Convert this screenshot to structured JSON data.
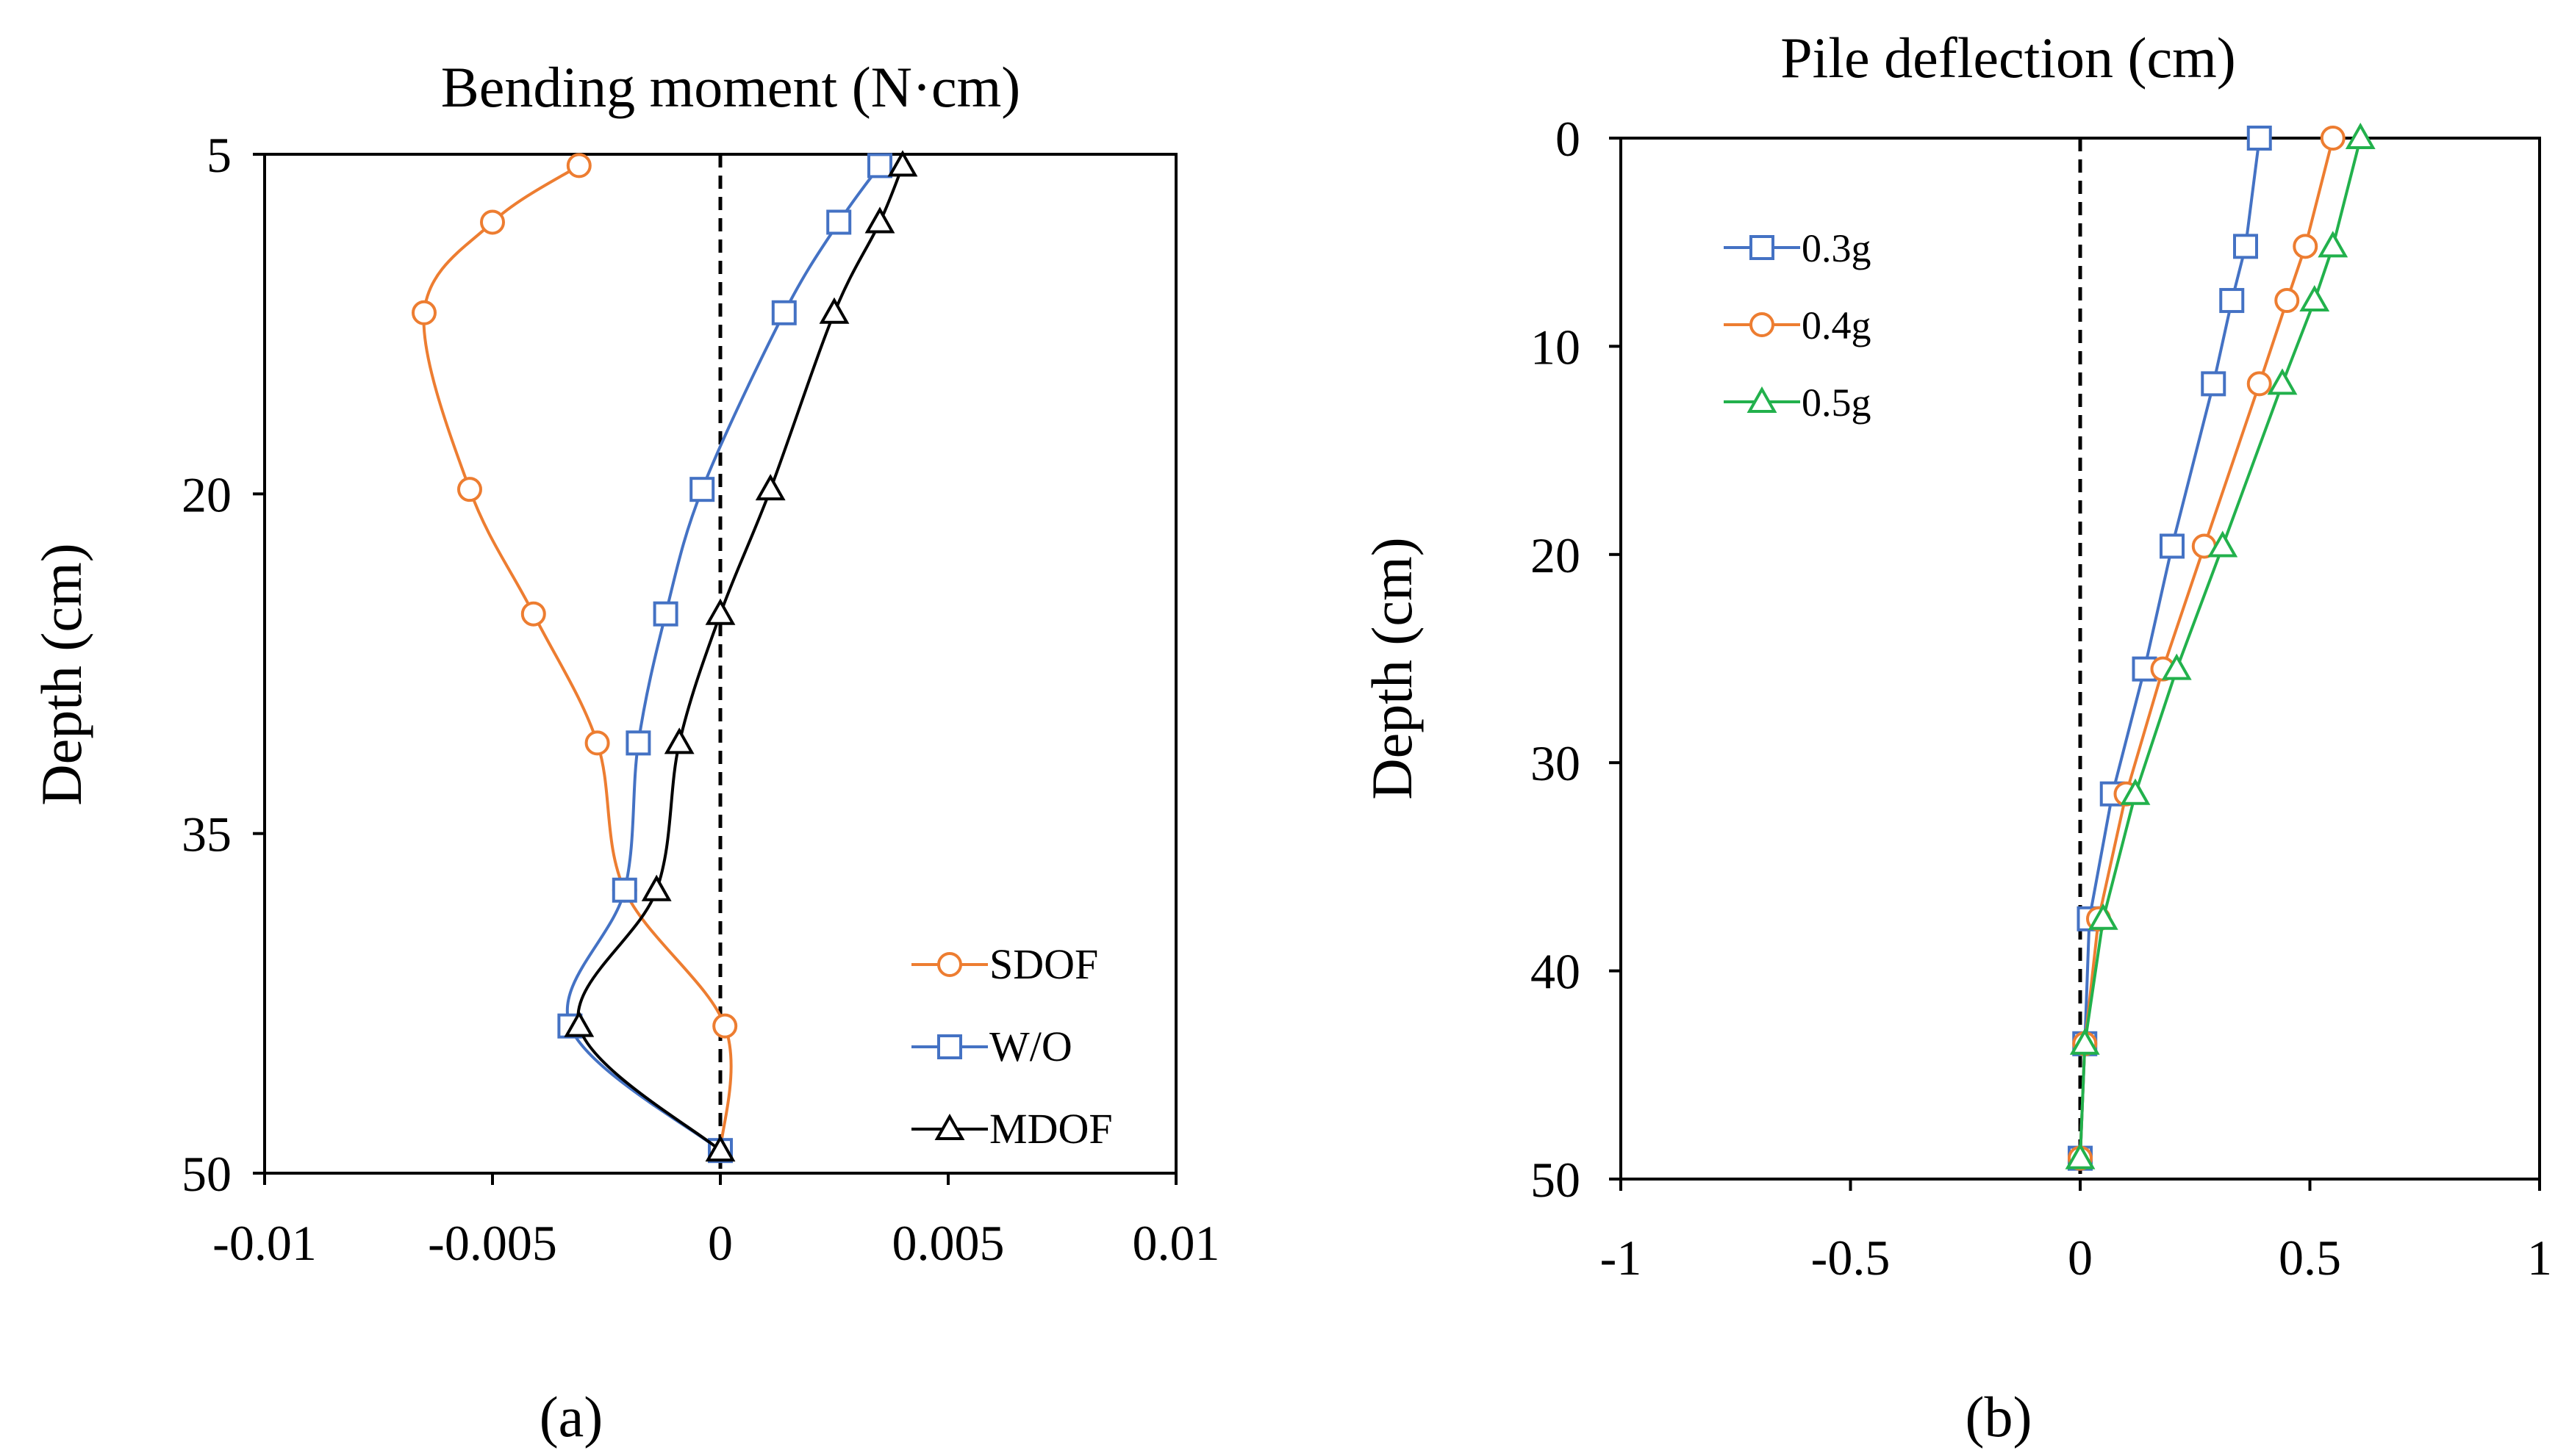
{
  "chart_data": [
    {
      "type": "line",
      "panel_label": "(a)",
      "title": "Bending moment (N·cm)",
      "xlabel": "",
      "ylabel": "Depth (cm)",
      "xlim": [
        -0.01,
        0.01
      ],
      "ylim": [
        5,
        50
      ],
      "y_inverted": true,
      "xticks": [
        -0.01,
        -0.005,
        0,
        0.005,
        0.01
      ],
      "xtick_labels": [
        "-0.01",
        "-0.005",
        "0",
        "0.005",
        "0.01"
      ],
      "yticks": [
        5,
        20,
        35,
        50
      ],
      "ytick_labels": [
        "5",
        "20",
        "35",
        "50"
      ],
      "ref_line_x": 0,
      "grid": false,
      "legend": "bottom-right",
      "series": [
        {
          "name": "SDOF",
          "color": "#ED7D31",
          "marker": "circle",
          "smooth": true,
          "x": [
            -0.0031,
            -0.005,
            -0.0065,
            -0.0055,
            -0.0041,
            -0.0027,
            -0.0021,
            0.0001,
            0.0
          ],
          "y": [
            5.5,
            8,
            12,
            19.8,
            25.3,
            31,
            37.5,
            43.5,
            49
          ]
        },
        {
          "name": "W/O",
          "color": "#4472C4",
          "marker": "square",
          "smooth": true,
          "x": [
            0.0035,
            0.0026,
            0.0014,
            -0.0004,
            -0.0012,
            -0.0018,
            -0.0021,
            -0.0033,
            0.0
          ],
          "y": [
            5.5,
            8,
            12,
            19.8,
            25.3,
            31,
            37.5,
            43.5,
            49
          ]
        },
        {
          "name": "MDOF",
          "color": "#000000",
          "marker": "triangle",
          "smooth": true,
          "x": [
            0.004,
            0.0035,
            0.0025,
            0.0011,
            0.0,
            -0.0009,
            -0.0014,
            -0.0031,
            0.0
          ],
          "y": [
            5.5,
            8,
            12,
            19.8,
            25.3,
            31,
            37.5,
            43.5,
            49
          ]
        }
      ]
    },
    {
      "type": "line",
      "panel_label": "(b)",
      "title": "Pile deflection (cm)",
      "xlabel": "",
      "ylabel": "Depth (cm)",
      "xlim": [
        -1,
        1
      ],
      "ylim": [
        0,
        50
      ],
      "y_inverted": true,
      "xticks": [
        -1,
        -0.5,
        0,
        0.5,
        1
      ],
      "xtick_labels": [
        "-1",
        "-0.5",
        "0",
        "0.5",
        "1"
      ],
      "yticks": [
        0,
        10,
        20,
        30,
        40,
        50
      ],
      "ytick_labels": [
        "0",
        "10",
        "20",
        "30",
        "40",
        "50"
      ],
      "ref_line_x": 0,
      "grid": false,
      "legend": "top-left",
      "series": [
        {
          "name": "0.3g",
          "color": "#4472C4",
          "marker": "square",
          "smooth": false,
          "x": [
            0.39,
            0.36,
            0.33,
            0.29,
            0.2,
            0.14,
            0.07,
            0.02,
            0.01,
            0.0
          ],
          "y": [
            0,
            5.2,
            7.8,
            11.8,
            19.6,
            25.5,
            31.5,
            37.5,
            43.5,
            49
          ]
        },
        {
          "name": "0.4g",
          "color": "#ED7D31",
          "marker": "circle",
          "smooth": false,
          "x": [
            0.55,
            0.49,
            0.45,
            0.39,
            0.27,
            0.18,
            0.1,
            0.04,
            0.01,
            0.0
          ],
          "y": [
            0,
            5.2,
            7.8,
            11.8,
            19.6,
            25.5,
            31.5,
            37.5,
            43.5,
            49
          ]
        },
        {
          "name": "0.5g",
          "color": "#22B14C",
          "marker": "triangle",
          "smooth": false,
          "x": [
            0.61,
            0.55,
            0.51,
            0.44,
            0.31,
            0.21,
            0.12,
            0.05,
            0.01,
            0.0
          ],
          "y": [
            0,
            5.2,
            7.8,
            11.8,
            19.6,
            25.5,
            31.5,
            37.5,
            43.5,
            49
          ]
        }
      ]
    }
  ]
}
